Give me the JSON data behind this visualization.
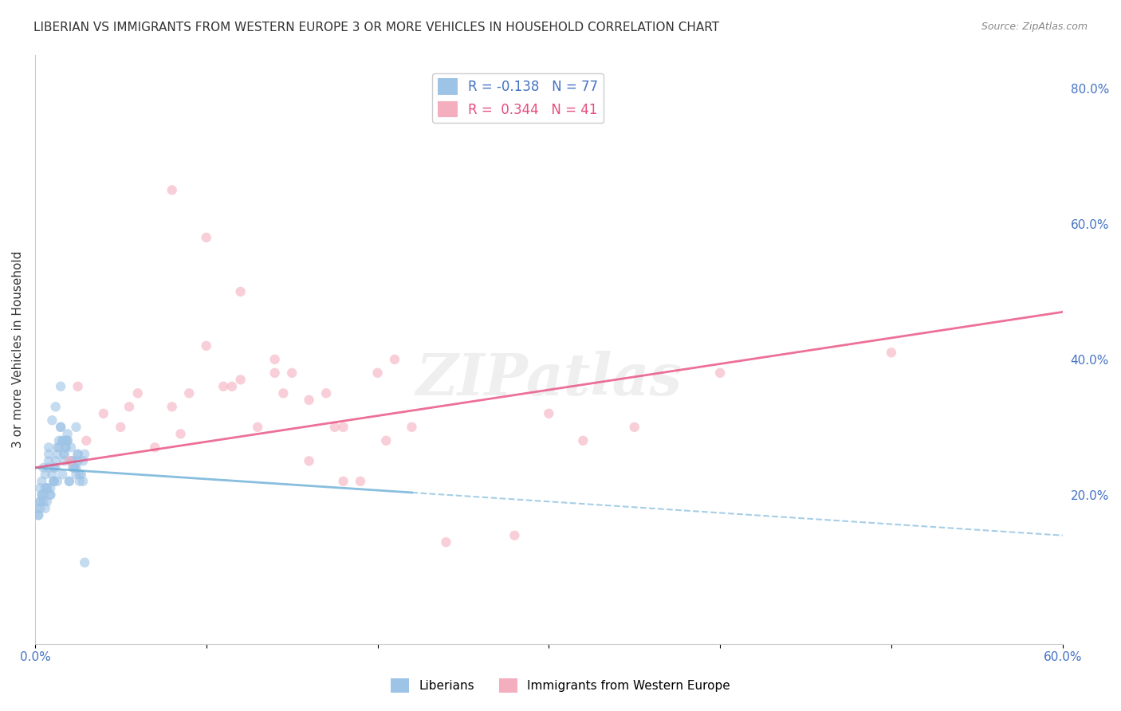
{
  "title": "LIBERIAN VS IMMIGRANTS FROM WESTERN EUROPE 3 OR MORE VEHICLES IN HOUSEHOLD CORRELATION CHART",
  "source": "Source: ZipAtlas.com",
  "xlabel": "",
  "ylabel": "3 or more Vehicles in Household",
  "xlim": [
    0.0,
    0.6
  ],
  "ylim": [
    -0.02,
    0.85
  ],
  "xticks": [
    0.0,
    0.1,
    0.2,
    0.3,
    0.4,
    0.5,
    0.6
  ],
  "xticklabels": [
    "0.0%",
    "",
    "",
    "",
    "",
    "",
    "60.0%"
  ],
  "yticks_right": [
    0.2,
    0.4,
    0.6,
    0.8
  ],
  "ytick_right_labels": [
    "20.0%",
    "40.0%",
    "60.0%",
    "80.0%"
  ],
  "right_axis_color": "#4472C4",
  "liberian_color": "#9DC3E6",
  "immigrant_color": "#F4AFBE",
  "liberian_line_color": "#6BAED6",
  "immigrant_line_color": "#E84C7D",
  "liberian_R": -0.138,
  "liberian_N": 77,
  "immigrant_R": 0.344,
  "immigrant_N": 41,
  "legend_label1": "R = -0.138   N = 77",
  "legend_label2": "R =  0.344   N = 41",
  "legend_text_color1": "#4472C4",
  "legend_text_color2": "#E84C7D",
  "grid_color": "#CCCCCC",
  "background_color": "#FFFFFF",
  "liberian_scatter": {
    "x": [
      0.008,
      0.015,
      0.012,
      0.02,
      0.025,
      0.018,
      0.005,
      0.003,
      0.007,
      0.01,
      0.022,
      0.028,
      0.016,
      0.013,
      0.009,
      0.006,
      0.004,
      0.019,
      0.024,
      0.011,
      0.003,
      0.008,
      0.014,
      0.021,
      0.017,
      0.026,
      0.005,
      0.002,
      0.011,
      0.023,
      0.029,
      0.007,
      0.016,
      0.012,
      0.009,
      0.006,
      0.018,
      0.025,
      0.013,
      0.004,
      0.001,
      0.008,
      0.015,
      0.022,
      0.019,
      0.027,
      0.003,
      0.011,
      0.017,
      0.024,
      0.006,
      0.014,
      0.021,
      0.009,
      0.002,
      0.016,
      0.023,
      0.028,
      0.005,
      0.013,
      0.02,
      0.007,
      0.018,
      0.025,
      0.012,
      0.004,
      0.01,
      0.019,
      0.026,
      0.008,
      0.015,
      0.022,
      0.003,
      0.017,
      0.024,
      0.011,
      0.029
    ],
    "y": [
      0.27,
      0.36,
      0.33,
      0.22,
      0.26,
      0.28,
      0.24,
      0.19,
      0.21,
      0.31,
      0.25,
      0.25,
      0.23,
      0.27,
      0.2,
      0.18,
      0.22,
      0.29,
      0.3,
      0.24,
      0.21,
      0.26,
      0.28,
      0.27,
      0.25,
      0.23,
      0.2,
      0.17,
      0.22,
      0.24,
      0.26,
      0.19,
      0.28,
      0.25,
      0.21,
      0.23,
      0.27,
      0.26,
      0.22,
      0.2,
      0.18,
      0.24,
      0.3,
      0.25,
      0.28,
      0.23,
      0.19,
      0.22,
      0.26,
      0.24,
      0.21,
      0.27,
      0.25,
      0.2,
      0.17,
      0.28,
      0.24,
      0.22,
      0.19,
      0.26,
      0.22,
      0.21,
      0.27,
      0.25,
      0.24,
      0.2,
      0.23,
      0.28,
      0.22,
      0.25,
      0.3,
      0.24,
      0.18,
      0.26,
      0.23,
      0.22,
      0.1
    ]
  },
  "immigrant_scatter": {
    "x": [
      0.02,
      0.04,
      0.06,
      0.08,
      0.1,
      0.12,
      0.14,
      0.16,
      0.18,
      0.2,
      0.03,
      0.05,
      0.07,
      0.09,
      0.11,
      0.13,
      0.15,
      0.17,
      0.19,
      0.21,
      0.025,
      0.055,
      0.085,
      0.115,
      0.145,
      0.175,
      0.205,
      0.22,
      0.08,
      0.1,
      0.12,
      0.14,
      0.16,
      0.18,
      0.32,
      0.35,
      0.5,
      0.28,
      0.24,
      0.3,
      0.4
    ],
    "y": [
      0.25,
      0.32,
      0.35,
      0.33,
      0.42,
      0.37,
      0.38,
      0.34,
      0.3,
      0.38,
      0.28,
      0.3,
      0.27,
      0.35,
      0.36,
      0.3,
      0.38,
      0.35,
      0.22,
      0.4,
      0.36,
      0.33,
      0.29,
      0.36,
      0.35,
      0.3,
      0.28,
      0.3,
      0.65,
      0.58,
      0.5,
      0.4,
      0.25,
      0.22,
      0.28,
      0.3,
      0.41,
      0.14,
      0.13,
      0.32,
      0.38
    ]
  },
  "liberian_trend": {
    "x_start": 0.0,
    "x_solid_end": 0.22,
    "x_end": 0.6,
    "y_start": 0.24,
    "y_end": 0.14
  },
  "immigrant_trend": {
    "x_start": 0.0,
    "x_end": 0.6,
    "y_start": 0.24,
    "y_end": 0.47
  },
  "watermark": "ZIPatlas",
  "marker_size": 80,
  "marker_alpha": 0.6,
  "line_alpha": 0.8
}
